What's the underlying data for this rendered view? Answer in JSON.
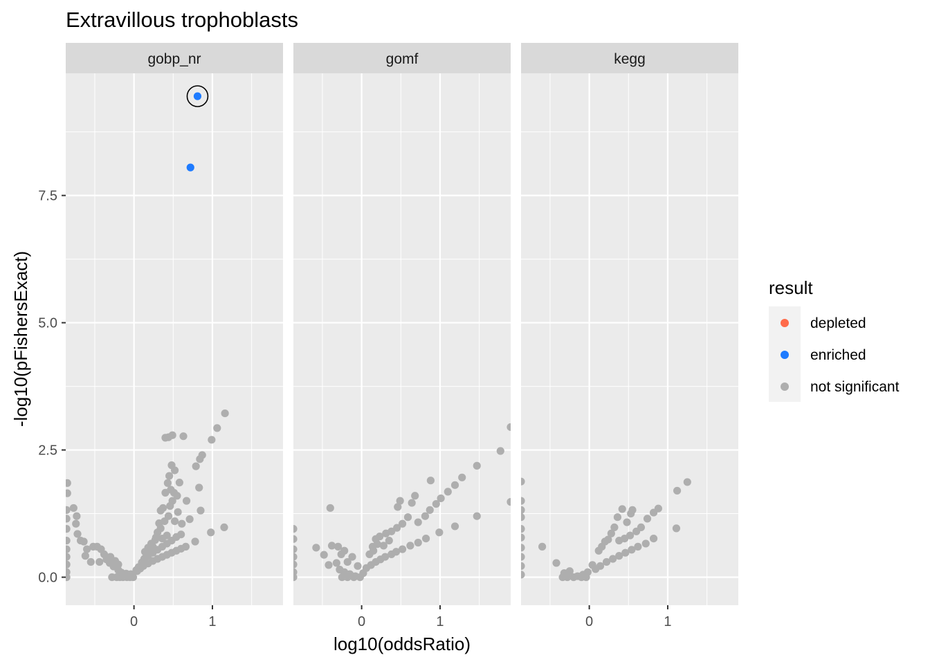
{
  "title": "Extravillous trophoblasts",
  "xlabel": "log10(oddsRatio)",
  "ylabel": "-log10(pFishersExact)",
  "colors": {
    "depleted": "#FF6B4A",
    "enriched": "#1E7BFF",
    "not significant": "#AEAEAE",
    "panel_bg": "#EBEBEB",
    "strip_bg": "#D9D9D9",
    "grid": "#FFFFFF"
  },
  "legend": {
    "title": "result",
    "items": [
      {
        "label": "depleted",
        "color": "#FF6B4A"
      },
      {
        "label": "enriched",
        "color": "#1E7BFF"
      },
      {
        "label": "not significant",
        "color": "#AEAEAE"
      }
    ]
  },
  "chart_data": {
    "type": "scatter",
    "facets": [
      "gobp_nr",
      "gomf",
      "kegg"
    ],
    "xlim": [
      -0.87,
      1.9
    ],
    "ylim": [
      -0.55,
      9.9
    ],
    "x_ticks": [
      0,
      1
    ],
    "x_tick_labels": [
      "0",
      "1"
    ],
    "y_ticks": [
      0.0,
      2.5,
      5.0,
      7.5
    ],
    "y_tick_labels": [
      "0.0",
      "2.5",
      "5.0",
      "7.5"
    ],
    "grid": true,
    "legend_position": "right",
    "series": [
      {
        "facet": "gobp_nr",
        "result": "enriched",
        "circled": true,
        "points": [
          [
            0.81,
            9.45
          ]
        ]
      },
      {
        "facet": "gobp_nr",
        "result": "enriched",
        "points": [
          [
            0.72,
            8.05
          ]
        ]
      },
      {
        "facet": "gobp_nr",
        "result": "not significant",
        "points": [
          [
            1.16,
            3.22
          ],
          [
            1.06,
            2.93
          ],
          [
            0.99,
            2.7
          ],
          [
            0.63,
            2.77
          ],
          [
            0.49,
            2.79
          ],
          [
            0.44,
            2.75
          ],
          [
            0.4,
            2.74
          ],
          [
            0.87,
            2.4
          ],
          [
            0.84,
            2.32
          ],
          [
            0.79,
            2.18
          ],
          [
            0.48,
            2.2
          ],
          [
            0.52,
            2.1
          ],
          [
            0.45,
            1.99
          ],
          [
            0.58,
            1.86
          ],
          [
            0.43,
            1.85
          ],
          [
            0.83,
            1.76
          ],
          [
            0.47,
            1.72
          ],
          [
            0.51,
            1.66
          ],
          [
            0.4,
            1.66
          ],
          [
            0.55,
            1.6
          ],
          [
            0.67,
            1.5
          ],
          [
            0.49,
            1.5
          ],
          [
            0.37,
            1.36
          ],
          [
            0.46,
            1.4
          ],
          [
            0.56,
            1.28
          ],
          [
            0.85,
            1.31
          ],
          [
            0.34,
            1.31
          ],
          [
            0.71,
            1.14
          ],
          [
            0.61,
            1.05
          ],
          [
            0.52,
            1.1
          ],
          [
            0.32,
            1.06
          ],
          [
            0.44,
            1.2
          ],
          [
            0.39,
            1.1
          ],
          [
            1.15,
            0.98
          ],
          [
            0.98,
            0.88
          ],
          [
            0.34,
            0.96
          ],
          [
            0.3,
            0.88
          ],
          [
            0.42,
            0.82
          ],
          [
            0.36,
            0.76
          ],
          [
            0.27,
            0.73
          ],
          [
            0.24,
            0.6
          ],
          [
            0.2,
            0.56
          ],
          [
            0.16,
            0.45
          ],
          [
            0.13,
            0.36
          ],
          [
            0.1,
            0.29
          ],
          [
            0.06,
            0.2
          ],
          [
            0.03,
            0.14
          ],
          [
            0.78,
            0.7
          ],
          [
            0.66,
            0.6
          ],
          [
            0.6,
            0.56
          ],
          [
            0.54,
            0.52
          ],
          [
            0.48,
            0.48
          ],
          [
            0.42,
            0.44
          ],
          [
            0.36,
            0.4
          ],
          [
            0.3,
            0.36
          ],
          [
            0.24,
            0.32
          ],
          [
            0.18,
            0.27
          ],
          [
            0.12,
            0.22
          ],
          [
            0.08,
            0.17
          ],
          [
            0.04,
            0.12
          ],
          [
            0.6,
            0.84
          ],
          [
            0.54,
            0.79
          ],
          [
            0.48,
            0.72
          ],
          [
            0.42,
            0.66
          ],
          [
            0.36,
            0.6
          ],
          [
            0.3,
            0.54
          ],
          [
            0.24,
            0.48
          ],
          [
            0.18,
            0.42
          ],
          [
            0.28,
            0.78
          ],
          [
            0.22,
            0.66
          ],
          [
            0.18,
            0.58
          ],
          [
            0.14,
            0.5
          ],
          [
            -0.01,
            0.0
          ],
          [
            -0.05,
            0.0
          ],
          [
            -0.09,
            0.0
          ],
          [
            -0.14,
            0.0
          ],
          [
            -0.18,
            0.0
          ],
          [
            -0.22,
            0.0
          ],
          [
            -0.28,
            0.0
          ],
          [
            -0.04,
            0.06
          ],
          [
            -0.1,
            0.07
          ],
          [
            -0.16,
            0.09
          ],
          [
            -0.2,
            0.14
          ],
          [
            -0.26,
            0.21
          ],
          [
            -0.31,
            0.28
          ],
          [
            -0.35,
            0.35
          ],
          [
            -0.2,
            0.25
          ],
          [
            -0.24,
            0.32
          ],
          [
            -0.3,
            0.4
          ],
          [
            -0.38,
            0.45
          ],
          [
            -0.42,
            0.55
          ],
          [
            -0.47,
            0.6
          ],
          [
            -0.52,
            0.6
          ],
          [
            -0.44,
            0.3
          ],
          [
            -0.55,
            0.3
          ],
          [
            -0.62,
            0.42
          ],
          [
            -0.6,
            0.55
          ],
          [
            -0.68,
            0.72
          ],
          [
            -0.64,
            0.7
          ],
          [
            -0.72,
            0.85
          ],
          [
            -0.74,
            1.05
          ],
          [
            -0.73,
            1.2
          ],
          [
            -0.77,
            1.36
          ],
          [
            -0.85,
            1.85
          ],
          [
            -0.85,
            1.65
          ],
          [
            -0.86,
            1.32
          ],
          [
            -0.86,
            1.15
          ],
          [
            -0.86,
            0.95
          ],
          [
            -0.86,
            0.72
          ],
          [
            -0.86,
            0.55
          ],
          [
            -0.86,
            0.4
          ],
          [
            -0.86,
            0.25
          ],
          [
            -0.86,
            0.1
          ],
          [
            -0.86,
            0.0
          ]
        ]
      },
      {
        "facet": "gomf",
        "result": "not significant",
        "points": [
          [
            1.9,
            2.95
          ],
          [
            1.77,
            2.48
          ],
          [
            1.9,
            1.48
          ],
          [
            1.47,
            2.19
          ],
          [
            1.28,
            1.96
          ],
          [
            1.19,
            1.81
          ],
          [
            1.1,
            1.68
          ],
          [
            1.01,
            1.55
          ],
          [
            0.88,
            1.9
          ],
          [
            0.95,
            1.44
          ],
          [
            0.87,
            1.32
          ],
          [
            0.81,
            1.2
          ],
          [
            0.72,
            1.08
          ],
          [
            0.68,
            1.6
          ],
          [
            0.64,
            1.46
          ],
          [
            0.59,
            1.18
          ],
          [
            0.49,
            1.5
          ],
          [
            0.46,
            1.38
          ],
          [
            0.52,
            1.05
          ],
          [
            0.45,
            0.97
          ],
          [
            0.38,
            0.9
          ],
          [
            0.31,
            0.86
          ],
          [
            0.23,
            0.8
          ],
          [
            0.18,
            0.75
          ],
          [
            0.14,
            0.6
          ],
          [
            0.1,
            0.45
          ],
          [
            1.47,
            1.2
          ],
          [
            1.19,
            1.0
          ],
          [
            0.99,
            0.88
          ],
          [
            0.82,
            0.76
          ],
          [
            0.72,
            0.68
          ],
          [
            0.62,
            0.62
          ],
          [
            0.52,
            0.55
          ],
          [
            0.44,
            0.5
          ],
          [
            0.38,
            0.45
          ],
          [
            0.3,
            0.4
          ],
          [
            0.24,
            0.35
          ],
          [
            0.18,
            0.3
          ],
          [
            0.12,
            0.24
          ],
          [
            0.06,
            0.18
          ],
          [
            0.2,
            0.65
          ],
          [
            0.15,
            0.52
          ],
          [
            0.35,
            0.72
          ],
          [
            0.28,
            0.62
          ],
          [
            -0.4,
            1.36
          ],
          [
            -0.58,
            0.58
          ],
          [
            -0.48,
            0.44
          ],
          [
            -0.38,
            0.62
          ],
          [
            -0.3,
            0.6
          ],
          [
            -0.22,
            0.52
          ],
          [
            -0.12,
            0.4
          ],
          [
            -0.26,
            0.45
          ],
          [
            -0.05,
            0.22
          ],
          [
            -0.18,
            0.3
          ],
          [
            -0.32,
            0.28
          ],
          [
            -0.42,
            0.24
          ],
          [
            -0.28,
            0.15
          ],
          [
            -0.22,
            0.1
          ],
          [
            -0.15,
            0.06
          ],
          [
            -0.08,
            0.02
          ],
          [
            -0.02,
            0.0
          ],
          [
            -0.1,
            0.0
          ],
          [
            -0.18,
            0.0
          ],
          [
            -0.25,
            0.0
          ],
          [
            0.02,
            0.08
          ],
          [
            -0.87,
            0.95
          ],
          [
            -0.87,
            0.75
          ],
          [
            -0.87,
            0.55
          ],
          [
            -0.87,
            0.4
          ],
          [
            -0.87,
            0.25
          ],
          [
            -0.87,
            0.1
          ],
          [
            -0.87,
            0.0
          ]
        ]
      },
      {
        "facet": "kegg",
        "result": "not significant",
        "points": [
          [
            1.25,
            1.87
          ],
          [
            1.12,
            1.7
          ],
          [
            1.11,
            0.96
          ],
          [
            0.88,
            1.35
          ],
          [
            0.82,
            1.27
          ],
          [
            0.74,
            1.15
          ],
          [
            0.55,
            1.32
          ],
          [
            0.53,
            1.25
          ],
          [
            0.48,
            1.08
          ],
          [
            0.42,
            1.34
          ],
          [
            0.36,
            1.18
          ],
          [
            0.32,
            0.98
          ],
          [
            0.28,
            0.86
          ],
          [
            0.24,
            0.74
          ],
          [
            0.2,
            0.7
          ],
          [
            0.16,
            0.6
          ],
          [
            0.12,
            0.52
          ],
          [
            0.66,
            0.98
          ],
          [
            0.6,
            0.9
          ],
          [
            0.52,
            0.82
          ],
          [
            0.45,
            0.76
          ],
          [
            0.38,
            0.72
          ],
          [
            0.82,
            0.76
          ],
          [
            0.72,
            0.66
          ],
          [
            0.62,
            0.6
          ],
          [
            0.54,
            0.54
          ],
          [
            0.46,
            0.48
          ],
          [
            0.38,
            0.42
          ],
          [
            0.3,
            0.36
          ],
          [
            0.22,
            0.3
          ],
          [
            0.14,
            0.22
          ],
          [
            0.08,
            0.16
          ],
          [
            0.04,
            0.24
          ],
          [
            -0.02,
            0.1
          ],
          [
            -0.08,
            0.05
          ],
          [
            -0.15,
            0.02
          ],
          [
            -0.2,
            0.0
          ],
          [
            -0.28,
            0.0
          ],
          [
            -0.34,
            0.0
          ],
          [
            -0.1,
            0.0
          ],
          [
            -0.04,
            0.0
          ],
          [
            -0.25,
            0.12
          ],
          [
            -0.32,
            0.08
          ],
          [
            -0.42,
            0.28
          ],
          [
            -0.6,
            0.6
          ],
          [
            -0.87,
            1.88
          ],
          [
            -0.87,
            1.5
          ],
          [
            -0.87,
            1.32
          ],
          [
            -0.87,
            1.18
          ],
          [
            -0.87,
            0.95
          ],
          [
            -0.87,
            0.78
          ],
          [
            -0.87,
            0.58
          ],
          [
            -0.87,
            0.4
          ],
          [
            -0.87,
            0.22
          ],
          [
            -0.87,
            0.05
          ]
        ]
      }
    ]
  }
}
